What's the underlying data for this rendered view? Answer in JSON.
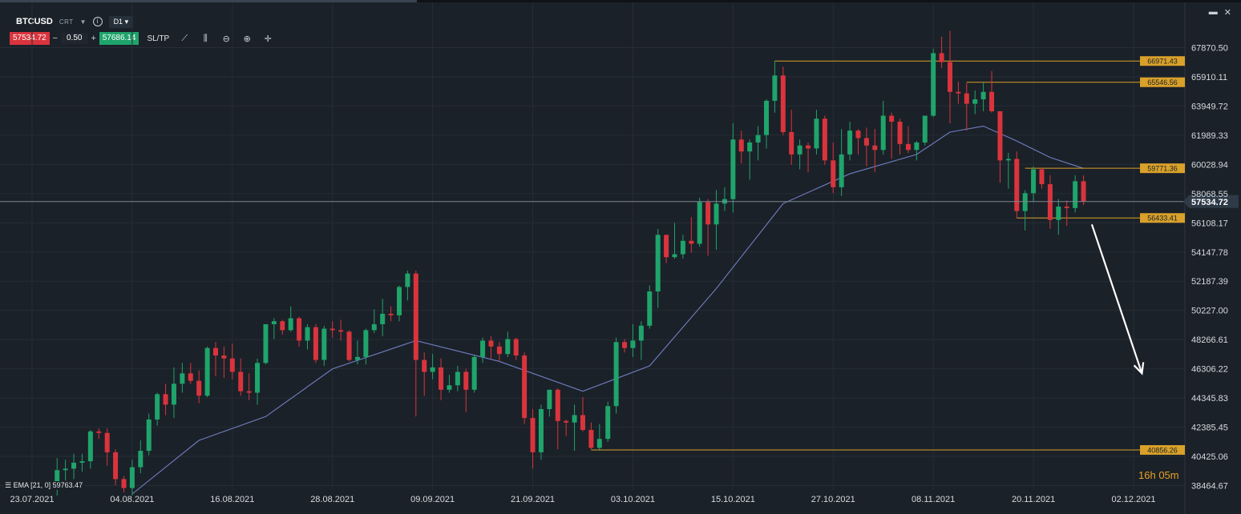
{
  "toolbar": {
    "symbol": "BTCUSD",
    "type": "CRT",
    "info": "i",
    "timeframe": "D1",
    "bid": "57534.72",
    "quantity": "0.50",
    "ask": "57686.14",
    "sltp": "SL/TP"
  },
  "current_price": "57534.72",
  "ema_legend": "EMA [21, 0] 59763.47",
  "countdown": {
    "hours": "16",
    "h": "h",
    "minutes": "05",
    "m": "m"
  },
  "colors": {
    "bull": "#1fa46b",
    "bear": "#d9343d",
    "ema": "#6f7fc2",
    "level": "#d9a12a",
    "bg": "#1b2128"
  },
  "chart_data": {
    "type": "candlestick",
    "symbol": "BTCUSD",
    "timeframe": "D1",
    "ylim": [
      37500,
      69700
    ],
    "y_ticks": [
      "67870.50",
      "65910.11",
      "63949.72",
      "61989.33",
      "60028.94",
      "58068.55",
      "56108.17",
      "54147.78",
      "52187.39",
      "50227.00",
      "48266.61",
      "46306.22",
      "44345.83",
      "42385.45",
      "40425.06",
      "38464.67"
    ],
    "x_ticks": [
      "23.07.2021",
      "04.08.2021",
      "16.08.2021",
      "28.08.2021",
      "09.09.2021",
      "21.09.2021",
      "03.10.2021",
      "15.10.2021",
      "27.10.2021",
      "08.11.2021",
      "20.11.2021",
      "02.12.2021"
    ],
    "x_domain": {
      "start": "2021-07-23",
      "end": "2021-12-02"
    },
    "x_ticks_dates": [
      "2021-07-23",
      "2021-08-04",
      "2021-08-16",
      "2021-08-28",
      "2021-09-09",
      "2021-09-21",
      "2021-10-03",
      "2021-10-15",
      "2021-10-27",
      "2021-11-08",
      "2021-11-20",
      "2021-12-02"
    ],
    "candles": [
      {
        "date": "2021-07-26",
        "o": 38400,
        "h": 40300,
        "l": 37800,
        "c": 39500
      },
      {
        "date": "2021-07-27",
        "o": 39500,
        "h": 40200,
        "l": 38800,
        "c": 39600
      },
      {
        "date": "2021-07-28",
        "o": 39600,
        "h": 40600,
        "l": 38900,
        "c": 40000
      },
      {
        "date": "2021-07-29",
        "o": 40000,
        "h": 40600,
        "l": 39400,
        "c": 40100
      },
      {
        "date": "2021-07-30",
        "o": 40100,
        "h": 42200,
        "l": 39600,
        "c": 42100
      },
      {
        "date": "2021-07-31",
        "o": 42100,
        "h": 42300,
        "l": 41600,
        "c": 42000
      },
      {
        "date": "2021-08-01",
        "o": 42000,
        "h": 42300,
        "l": 39800,
        "c": 40700
      },
      {
        "date": "2021-08-02",
        "o": 40700,
        "h": 40900,
        "l": 38500,
        "c": 38900
      },
      {
        "date": "2021-08-03",
        "o": 38900,
        "h": 39100,
        "l": 38000,
        "c": 38300
      },
      {
        "date": "2021-08-04",
        "o": 38300,
        "h": 40200,
        "l": 37800,
        "c": 39700
      },
      {
        "date": "2021-08-05",
        "o": 39700,
        "h": 41500,
        "l": 39300,
        "c": 40800
      },
      {
        "date": "2021-08-06",
        "o": 40800,
        "h": 43300,
        "l": 40500,
        "c": 42900
      },
      {
        "date": "2021-08-07",
        "o": 42900,
        "h": 44700,
        "l": 42500,
        "c": 44600
      },
      {
        "date": "2021-08-08",
        "o": 44600,
        "h": 45300,
        "l": 43200,
        "c": 43900
      },
      {
        "date": "2021-08-09",
        "o": 43900,
        "h": 46400,
        "l": 43000,
        "c": 45300
      },
      {
        "date": "2021-08-10",
        "o": 45300,
        "h": 46700,
        "l": 44700,
        "c": 46000
      },
      {
        "date": "2021-08-11",
        "o": 46000,
        "h": 46700,
        "l": 45300,
        "c": 45500
      },
      {
        "date": "2021-08-12",
        "o": 45500,
        "h": 46200,
        "l": 44000,
        "c": 44500
      },
      {
        "date": "2021-08-13",
        "o": 44500,
        "h": 47800,
        "l": 44400,
        "c": 47700
      },
      {
        "date": "2021-08-14",
        "o": 47700,
        "h": 48100,
        "l": 45800,
        "c": 47200
      },
      {
        "date": "2021-08-15",
        "o": 47200,
        "h": 47800,
        "l": 45700,
        "c": 47000
      },
      {
        "date": "2021-08-16",
        "o": 47000,
        "h": 48000,
        "l": 45600,
        "c": 46100
      },
      {
        "date": "2021-08-17",
        "o": 46100,
        "h": 47000,
        "l": 44500,
        "c": 44800
      },
      {
        "date": "2021-08-18",
        "o": 44800,
        "h": 46000,
        "l": 44200,
        "c": 44700
      },
      {
        "date": "2021-08-19",
        "o": 44700,
        "h": 47000,
        "l": 43900,
        "c": 46700
      },
      {
        "date": "2021-08-20",
        "o": 46700,
        "h": 49300,
        "l": 46600,
        "c": 49300
      },
      {
        "date": "2021-08-21",
        "o": 49300,
        "h": 49700,
        "l": 48300,
        "c": 49500
      },
      {
        "date": "2021-08-22",
        "o": 49500,
        "h": 49600,
        "l": 48600,
        "c": 48900
      },
      {
        "date": "2021-08-23",
        "o": 48900,
        "h": 50500,
        "l": 48800,
        "c": 49700
      },
      {
        "date": "2021-08-24",
        "o": 49700,
        "h": 49800,
        "l": 47800,
        "c": 48200
      },
      {
        "date": "2021-08-25",
        "o": 48200,
        "h": 49300,
        "l": 47600,
        "c": 49100
      },
      {
        "date": "2021-08-26",
        "o": 49100,
        "h": 49300,
        "l": 46700,
        "c": 46900
      },
      {
        "date": "2021-08-27",
        "o": 46900,
        "h": 49200,
        "l": 46500,
        "c": 49000
      },
      {
        "date": "2021-08-28",
        "o": 49000,
        "h": 49500,
        "l": 48400,
        "c": 48900
      },
      {
        "date": "2021-08-29",
        "o": 48900,
        "h": 49600,
        "l": 48200,
        "c": 48800
      },
      {
        "date": "2021-08-30",
        "o": 48800,
        "h": 48900,
        "l": 46800,
        "c": 46900
      },
      {
        "date": "2021-08-31",
        "o": 46900,
        "h": 48200,
        "l": 46600,
        "c": 47100
      },
      {
        "date": "2021-09-01",
        "o": 47100,
        "h": 49000,
        "l": 46600,
        "c": 48900
      },
      {
        "date": "2021-09-02",
        "o": 48900,
        "h": 50300,
        "l": 48700,
        "c": 49300
      },
      {
        "date": "2021-09-03",
        "o": 49300,
        "h": 51000,
        "l": 48500,
        "c": 50000
      },
      {
        "date": "2021-09-04",
        "o": 50000,
        "h": 50500,
        "l": 49500,
        "c": 49900
      },
      {
        "date": "2021-09-05",
        "o": 49900,
        "h": 51900,
        "l": 49500,
        "c": 51800
      },
      {
        "date": "2021-09-06",
        "o": 51800,
        "h": 52900,
        "l": 50900,
        "c": 52700
      },
      {
        "date": "2021-09-07",
        "o": 52700,
        "h": 52900,
        "l": 43100,
        "c": 46900
      },
      {
        "date": "2021-09-08",
        "o": 46900,
        "h": 47400,
        "l": 44500,
        "c": 46100
      },
      {
        "date": "2021-09-09",
        "o": 46100,
        "h": 47300,
        "l": 45600,
        "c": 46400
      },
      {
        "date": "2021-09-10",
        "o": 46400,
        "h": 47000,
        "l": 44200,
        "c": 44900
      },
      {
        "date": "2021-09-11",
        "o": 44900,
        "h": 45900,
        "l": 44700,
        "c": 45200
      },
      {
        "date": "2021-09-12",
        "o": 45200,
        "h": 46500,
        "l": 44800,
        "c": 46100
      },
      {
        "date": "2021-09-13",
        "o": 46100,
        "h": 46300,
        "l": 43400,
        "c": 44900
      },
      {
        "date": "2021-09-14",
        "o": 44900,
        "h": 47200,
        "l": 44700,
        "c": 47100
      },
      {
        "date": "2021-09-15",
        "o": 47100,
        "h": 48400,
        "l": 46700,
        "c": 48200
      },
      {
        "date": "2021-09-16",
        "o": 48200,
        "h": 48500,
        "l": 47000,
        "c": 47800
      },
      {
        "date": "2021-09-17",
        "o": 47800,
        "h": 48100,
        "l": 46800,
        "c": 47300
      },
      {
        "date": "2021-09-18",
        "o": 47300,
        "h": 48800,
        "l": 47100,
        "c": 48300
      },
      {
        "date": "2021-09-19",
        "o": 48300,
        "h": 48400,
        "l": 46900,
        "c": 47200
      },
      {
        "date": "2021-09-20",
        "o": 47200,
        "h": 47400,
        "l": 42600,
        "c": 43000
      },
      {
        "date": "2021-09-21",
        "o": 43000,
        "h": 43600,
        "l": 39600,
        "c": 40700
      },
      {
        "date": "2021-09-22",
        "o": 40700,
        "h": 43900,
        "l": 40200,
        "c": 43600
      },
      {
        "date": "2021-09-23",
        "o": 43600,
        "h": 44900,
        "l": 43100,
        "c": 44900
      },
      {
        "date": "2021-09-24",
        "o": 44900,
        "h": 45000,
        "l": 40900,
        "c": 42800
      },
      {
        "date": "2021-09-25",
        "o": 42800,
        "h": 42900,
        "l": 41800,
        "c": 42700
      },
      {
        "date": "2021-09-26",
        "o": 42700,
        "h": 43900,
        "l": 40800,
        "c": 43200
      },
      {
        "date": "2021-09-27",
        "o": 43200,
        "h": 44400,
        "l": 42100,
        "c": 42200
      },
      {
        "date": "2021-09-28",
        "o": 42200,
        "h": 42700,
        "l": 40900,
        "c": 41000
      },
      {
        "date": "2021-09-29",
        "o": 41000,
        "h": 42600,
        "l": 40800,
        "c": 41600
      },
      {
        "date": "2021-09-30",
        "o": 41600,
        "h": 44100,
        "l": 41400,
        "c": 43800
      },
      {
        "date": "2021-10-01",
        "o": 43800,
        "h": 48400,
        "l": 43300,
        "c": 48100
      },
      {
        "date": "2021-10-02",
        "o": 48100,
        "h": 48300,
        "l": 47400,
        "c": 47700
      },
      {
        "date": "2021-10-03",
        "o": 47700,
        "h": 49300,
        "l": 47100,
        "c": 48200
      },
      {
        "date": "2021-10-04",
        "o": 48200,
        "h": 49500,
        "l": 46900,
        "c": 49200
      },
      {
        "date": "2021-10-05",
        "o": 49200,
        "h": 51900,
        "l": 49000,
        "c": 51500
      },
      {
        "date": "2021-10-06",
        "o": 51500,
        "h": 55700,
        "l": 50400,
        "c": 55300
      },
      {
        "date": "2021-10-07",
        "o": 55300,
        "h": 55300,
        "l": 53400,
        "c": 53800
      },
      {
        "date": "2021-10-08",
        "o": 53800,
        "h": 56100,
        "l": 53700,
        "c": 54000
      },
      {
        "date": "2021-10-09",
        "o": 54000,
        "h": 55300,
        "l": 53700,
        "c": 54900
      },
      {
        "date": "2021-10-10",
        "o": 54900,
        "h": 56500,
        "l": 54100,
        "c": 54700
      },
      {
        "date": "2021-10-11",
        "o": 54700,
        "h": 57800,
        "l": 54500,
        "c": 57500
      },
      {
        "date": "2021-10-12",
        "o": 57500,
        "h": 57700,
        "l": 53900,
        "c": 56000
      },
      {
        "date": "2021-10-13",
        "o": 56000,
        "h": 58300,
        "l": 54300,
        "c": 57400
      },
      {
        "date": "2021-10-14",
        "o": 57400,
        "h": 58500,
        "l": 56900,
        "c": 57700
      },
      {
        "date": "2021-10-15",
        "o": 57700,
        "h": 62800,
        "l": 56800,
        "c": 61700
      },
      {
        "date": "2021-10-16",
        "o": 61700,
        "h": 62300,
        "l": 60100,
        "c": 60900
      },
      {
        "date": "2021-10-17",
        "o": 60900,
        "h": 61700,
        "l": 59000,
        "c": 61500
      },
      {
        "date": "2021-10-18",
        "o": 61500,
        "h": 62600,
        "l": 60300,
        "c": 62000
      },
      {
        "date": "2021-10-19",
        "o": 62000,
        "h": 64400,
        "l": 61100,
        "c": 64300
      },
      {
        "date": "2021-10-20",
        "o": 64300,
        "h": 66971,
        "l": 63500,
        "c": 66000
      },
      {
        "date": "2021-10-21",
        "o": 66000,
        "h": 66600,
        "l": 62000,
        "c": 62200
      },
      {
        "date": "2021-10-22",
        "o": 62200,
        "h": 63700,
        "l": 60000,
        "c": 60700
      },
      {
        "date": "2021-10-23",
        "o": 60700,
        "h": 61700,
        "l": 59700,
        "c": 61300
      },
      {
        "date": "2021-10-24",
        "o": 61300,
        "h": 61500,
        "l": 59500,
        "c": 61100
      },
      {
        "date": "2021-10-25",
        "o": 61100,
        "h": 63700,
        "l": 60700,
        "c": 63100
      },
      {
        "date": "2021-10-26",
        "o": 63100,
        "h": 63300,
        "l": 60000,
        "c": 60300
      },
      {
        "date": "2021-10-27",
        "o": 60300,
        "h": 61500,
        "l": 58100,
        "c": 58500
      },
      {
        "date": "2021-10-28",
        "o": 58500,
        "h": 62400,
        "l": 57900,
        "c": 60700
      },
      {
        "date": "2021-10-29",
        "o": 60700,
        "h": 62900,
        "l": 60300,
        "c": 62300
      },
      {
        "date": "2021-10-30",
        "o": 62300,
        "h": 62400,
        "l": 60700,
        "c": 61800
      },
      {
        "date": "2021-10-31",
        "o": 61800,
        "h": 62500,
        "l": 59900,
        "c": 61300
      },
      {
        "date": "2021-11-01",
        "o": 61300,
        "h": 62400,
        "l": 59500,
        "c": 61000
      },
      {
        "date": "2021-11-02",
        "o": 61000,
        "h": 64300,
        "l": 60700,
        "c": 63300
      },
      {
        "date": "2021-11-03",
        "o": 63300,
        "h": 63500,
        "l": 60400,
        "c": 62900
      },
      {
        "date": "2021-11-04",
        "o": 62900,
        "h": 63100,
        "l": 60700,
        "c": 61400
      },
      {
        "date": "2021-11-05",
        "o": 61400,
        "h": 62600,
        "l": 60800,
        "c": 61000
      },
      {
        "date": "2021-11-06",
        "o": 61000,
        "h": 61600,
        "l": 60300,
        "c": 61500
      },
      {
        "date": "2021-11-07",
        "o": 61500,
        "h": 63300,
        "l": 61300,
        "c": 63300
      },
      {
        "date": "2021-11-08",
        "o": 63300,
        "h": 67800,
        "l": 63200,
        "c": 67500
      },
      {
        "date": "2021-11-09",
        "o": 67500,
        "h": 68600,
        "l": 66500,
        "c": 66900
      },
      {
        "date": "2021-11-10",
        "o": 66900,
        "h": 69000,
        "l": 62800,
        "c": 64900
      },
      {
        "date": "2021-11-11",
        "o": 64900,
        "h": 65600,
        "l": 64100,
        "c": 64800
      },
      {
        "date": "2021-11-12",
        "o": 64800,
        "h": 65500,
        "l": 62300,
        "c": 64100
      },
      {
        "date": "2021-11-13",
        "o": 64100,
        "h": 65000,
        "l": 63400,
        "c": 64400
      },
      {
        "date": "2021-11-14",
        "o": 64400,
        "h": 65500,
        "l": 63600,
        "c": 64900
      },
      {
        "date": "2021-11-15",
        "o": 64900,
        "h": 66300,
        "l": 63500,
        "c": 63600
      },
      {
        "date": "2021-11-16",
        "o": 63600,
        "h": 63600,
        "l": 58800,
        "c": 60300
      },
      {
        "date": "2021-11-17",
        "o": 60300,
        "h": 60800,
        "l": 58400,
        "c": 60400
      },
      {
        "date": "2021-11-18",
        "o": 60400,
        "h": 60900,
        "l": 56400,
        "c": 56900
      },
      {
        "date": "2021-11-19",
        "o": 56900,
        "h": 58300,
        "l": 55600,
        "c": 58100
      },
      {
        "date": "2021-11-20",
        "o": 58100,
        "h": 59900,
        "l": 57500,
        "c": 59700
      },
      {
        "date": "2021-11-21",
        "o": 59700,
        "h": 59800,
        "l": 58400,
        "c": 58700
      },
      {
        "date": "2021-11-22",
        "o": 58700,
        "h": 59300,
        "l": 55700,
        "c": 56300
      },
      {
        "date": "2021-11-23",
        "o": 56300,
        "h": 57700,
        "l": 55300,
        "c": 57200
      },
      {
        "date": "2021-11-24",
        "o": 57200,
        "h": 57600,
        "l": 55900,
        "c": 57100
      },
      {
        "date": "2021-11-25",
        "o": 57100,
        "h": 59300,
        "l": 56800,
        "c": 58900
      },
      {
        "date": "2021-11-26",
        "o": 58900,
        "h": 59300,
        "l": 57300,
        "c": 57534.72
      }
    ],
    "ema": {
      "period": 21,
      "shift": 0,
      "last": 59763.47,
      "points": [
        {
          "date": "2021-08-04",
          "v": 37900
        },
        {
          "date": "2021-08-12",
          "v": 41500
        },
        {
          "date": "2021-08-20",
          "v": 43100
        },
        {
          "date": "2021-08-28",
          "v": 46300
        },
        {
          "date": "2021-09-07",
          "v": 48200
        },
        {
          "date": "2021-09-17",
          "v": 46800
        },
        {
          "date": "2021-09-27",
          "v": 44800
        },
        {
          "date": "2021-10-05",
          "v": 46500
        },
        {
          "date": "2021-10-13",
          "v": 51700
        },
        {
          "date": "2021-10-21",
          "v": 57400
        },
        {
          "date": "2021-10-29",
          "v": 59400
        },
        {
          "date": "2021-11-06",
          "v": 60700
        },
        {
          "date": "2021-11-10",
          "v": 62200
        },
        {
          "date": "2021-11-14",
          "v": 62600
        },
        {
          "date": "2021-11-18",
          "v": 61600
        },
        {
          "date": "2021-11-22",
          "v": 60500
        },
        {
          "date": "2021-11-26",
          "v": 59763.47
        }
      ]
    },
    "horizontal_levels": [
      {
        "price": "66971.43",
        "value": 66971.43,
        "from": "2021-10-20"
      },
      {
        "price": "65546.56",
        "value": 65546.56,
        "from": "2021-11-12"
      },
      {
        "price": "59771.36",
        "value": 59771.36,
        "from": "2021-11-19"
      },
      {
        "price": "56433.41",
        "value": 56433.41,
        "from": "2021-11-18"
      },
      {
        "price": "40856.26",
        "value": 40856.26,
        "from": "2021-09-28"
      }
    ],
    "current_price_line": 57534.72,
    "annotations": [
      {
        "type": "arrow",
        "color": "#ffffff",
        "from": {
          "date": "2021-11-27",
          "price": 56000
        },
        "to": {
          "date": "2021-12-03",
          "price": 46000
        }
      }
    ]
  }
}
